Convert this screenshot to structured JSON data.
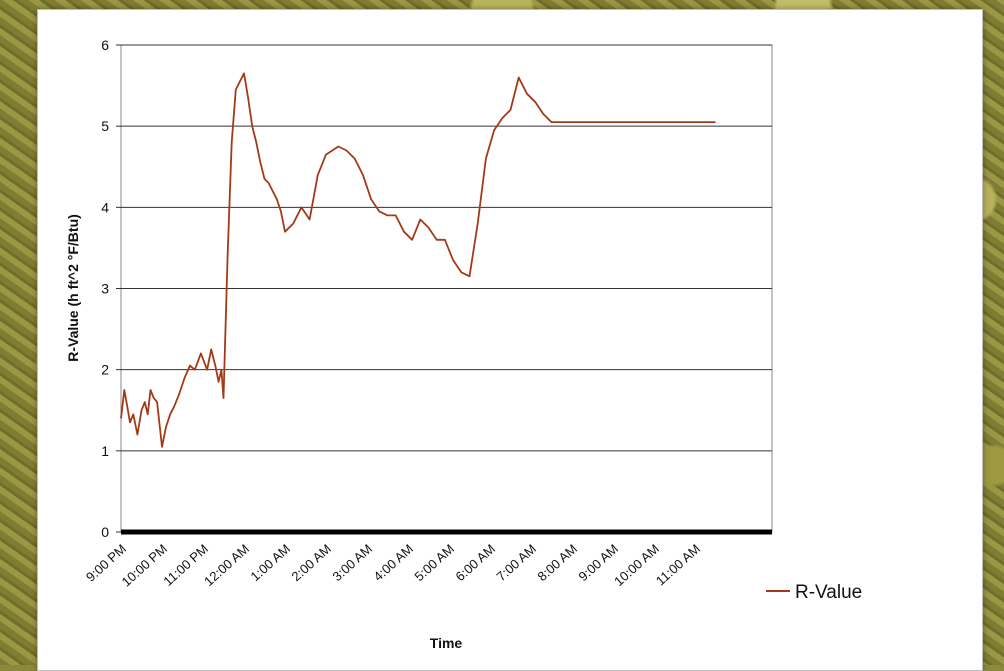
{
  "chart_data": {
    "type": "line",
    "xlabel": "Time",
    "ylabel": "R-Value (h ft^2 °F/Btu)",
    "ylim": [
      0,
      6
    ],
    "yticks": [
      0,
      1,
      2,
      3,
      4,
      5,
      6
    ],
    "grid": true,
    "legend_position": "right",
    "categories": [
      "9:00 PM",
      "10:00 PM",
      "11:00 PM",
      "12:00 AM",
      "1:00 AM",
      "2:00 AM",
      "3:00 AM",
      "4:00 AM",
      "5:00 AM",
      "6:00 AM",
      "7:00 AM",
      "8:00 AM",
      "9:00 AM",
      "10:00 AM",
      "11:00 AM"
    ],
    "series": [
      {
        "name": "R-Value",
        "color": "#a33a17",
        "x": [
          0,
          0.08,
          0.15,
          0.22,
          0.3,
          0.4,
          0.5,
          0.58,
          0.65,
          0.72,
          0.8,
          0.88,
          1.0,
          1.1,
          1.2,
          1.3,
          1.42,
          1.55,
          1.68,
          1.8,
          1.95,
          2.1,
          2.2,
          2.3,
          2.38,
          2.45,
          2.5,
          2.6,
          2.7,
          2.8,
          2.9,
          3.0,
          3.1,
          3.2,
          3.3,
          3.4,
          3.45,
          3.5,
          3.6,
          3.7,
          3.8,
          3.9,
          4.0,
          4.2,
          4.4,
          4.6,
          4.8,
          5.0,
          5.3,
          5.5,
          5.7,
          5.9,
          6.1,
          6.3,
          6.5,
          6.7,
          6.9,
          7.1,
          7.3,
          7.5,
          7.7,
          7.9,
          8.1,
          8.3,
          8.5,
          8.7,
          8.9,
          9.1,
          9.3,
          9.5,
          9.7,
          9.9,
          10.1,
          10.3,
          10.5,
          10.7,
          10.9,
          11.1,
          11.3,
          11.5,
          11.7,
          11.9,
          12.1,
          12.3,
          12.45,
          12.6,
          12.75,
          12.9,
          13.0,
          13.15,
          13.3,
          13.45,
          13.6,
          13.75,
          13.9,
          14.05,
          14.2,
          14.35,
          14.5
        ],
        "values": [
          1.4,
          1.75,
          1.55,
          1.35,
          1.45,
          1.2,
          1.5,
          1.6,
          1.45,
          1.75,
          1.65,
          1.6,
          1.05,
          1.3,
          1.45,
          1.55,
          1.7,
          1.9,
          2.05,
          2.0,
          2.2,
          2.0,
          2.25,
          2.05,
          1.85,
          2.0,
          1.65,
          3.4,
          4.8,
          5.45,
          5.55,
          5.65,
          5.35,
          5.0,
          4.8,
          4.55,
          4.45,
          4.35,
          4.3,
          4.2,
          4.1,
          3.95,
          3.7,
          3.8,
          4.0,
          3.85,
          4.4,
          4.65,
          4.75,
          4.7,
          4.6,
          4.4,
          4.1,
          3.95,
          3.9,
          3.9,
          3.7,
          3.6,
          3.85,
          3.75,
          3.6,
          3.6,
          3.35,
          3.2,
          3.15,
          3.8,
          4.6,
          4.95,
          5.1,
          5.2,
          5.6,
          5.4,
          5.3,
          5.15,
          5.05,
          5.05,
          5.05,
          5.05,
          5.05,
          5.05,
          5.05,
          5.05,
          5.05,
          5.05,
          5.05,
          5.05,
          5.05,
          5.05,
          5.05,
          5.05,
          5.05,
          5.05,
          5.05,
          5.05,
          5.05,
          5.05,
          5.05,
          5.05,
          5.05
        ]
      }
    ]
  }
}
